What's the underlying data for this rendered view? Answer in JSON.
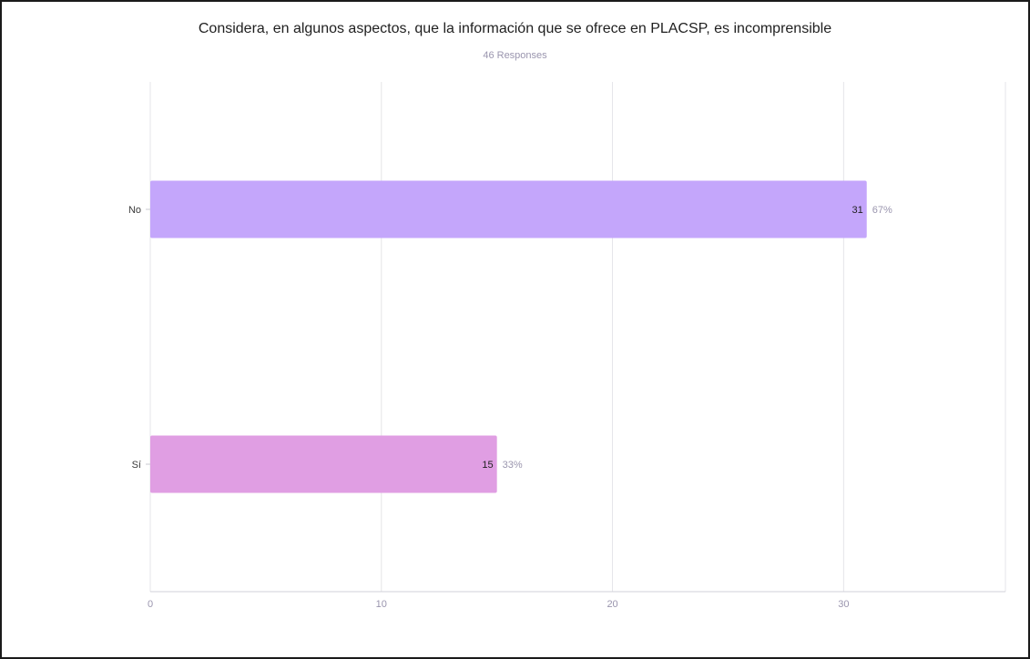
{
  "chart_data": {
    "type": "bar",
    "orientation": "horizontal",
    "title": "Considera, en algunos aspectos, que la información que se ofrece en PLACSP, es incomprensible",
    "subtitle": "46 Responses",
    "categories": [
      "No",
      "Sí"
    ],
    "values": [
      31,
      15
    ],
    "percent_labels": [
      "67%",
      "33%"
    ],
    "colors": [
      "#c4a6fb",
      "#e09ee3"
    ],
    "xlim": [
      0,
      37
    ],
    "xticks": [
      0,
      10,
      20,
      30
    ],
    "grid": true
  }
}
